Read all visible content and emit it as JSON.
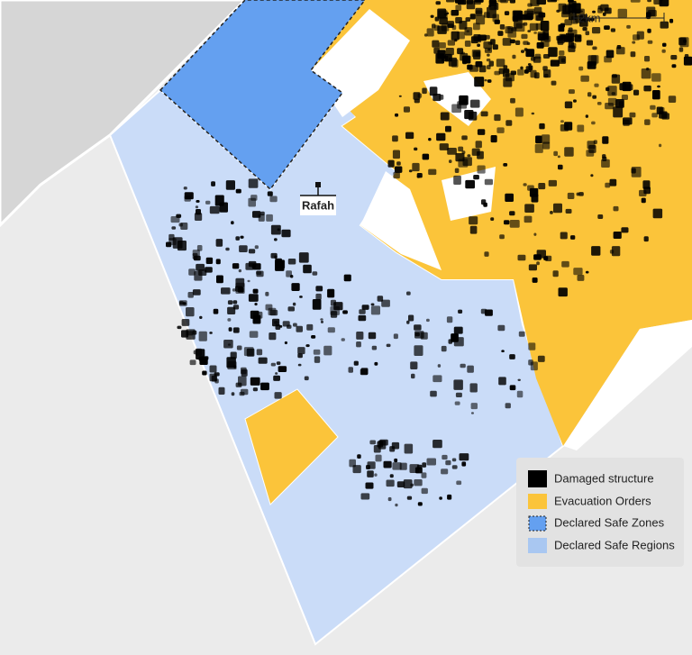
{
  "map": {
    "place_label": "Rafah",
    "scale_label": "2km",
    "legend": [
      "Damaged structure",
      "Evacuation Orders",
      "Declared Safe Zones",
      "Declared Safe Regions"
    ]
  }
}
